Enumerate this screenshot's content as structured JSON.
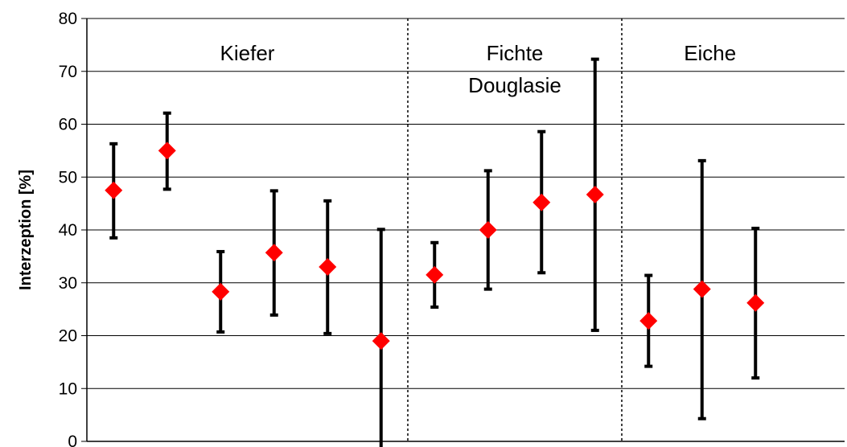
{
  "chart_data": {
    "type": "scatter",
    "title": "",
    "xlabel": "",
    "ylabel": "Interzeption [%]",
    "ylim": [
      0,
      80
    ],
    "yticks": [
      "0",
      "10",
      "20",
      "30",
      "40",
      "50",
      "60",
      "70",
      "80"
    ],
    "grid": true,
    "marker_color": "#ff0000",
    "errorbar_color": "#000000",
    "groups": [
      {
        "label": [
          "Kiefer"
        ],
        "x_start": 0.5,
        "x_end": 6.5
      },
      {
        "label": [
          "Fichte",
          "Douglasie"
        ],
        "x_start": 6.5,
        "x_end": 10.5
      },
      {
        "label": [
          "Eiche"
        ],
        "x_start": 10.5,
        "x_end": 13.8
      }
    ],
    "points": [
      {
        "x": 1,
        "y": 47.5,
        "low": 38.5,
        "high": 56.3
      },
      {
        "x": 2,
        "y": 55.0,
        "low": 47.7,
        "high": 62.1
      },
      {
        "x": 3,
        "y": 28.3,
        "low": 20.7,
        "high": 35.9
      },
      {
        "x": 4,
        "y": 35.7,
        "low": 23.9,
        "high": 47.4
      },
      {
        "x": 5,
        "y": 33.0,
        "low": 20.4,
        "high": 45.5
      },
      {
        "x": 6,
        "y": 19.0,
        "low": -2.0,
        "high": 40.1
      },
      {
        "x": 7,
        "y": 31.5,
        "low": 25.4,
        "high": 37.6
      },
      {
        "x": 8,
        "y": 40.0,
        "low": 28.8,
        "high": 51.2
      },
      {
        "x": 9,
        "y": 45.2,
        "low": 31.9,
        "high": 58.6
      },
      {
        "x": 10,
        "y": 46.7,
        "low": 21.0,
        "high": 72.3
      },
      {
        "x": 11,
        "y": 22.8,
        "low": 14.2,
        "high": 31.4
      },
      {
        "x": 12,
        "y": 28.8,
        "low": 4.3,
        "high": 53.1
      },
      {
        "x": 13,
        "y": 26.2,
        "low": 12.0,
        "high": 40.3
      }
    ]
  }
}
